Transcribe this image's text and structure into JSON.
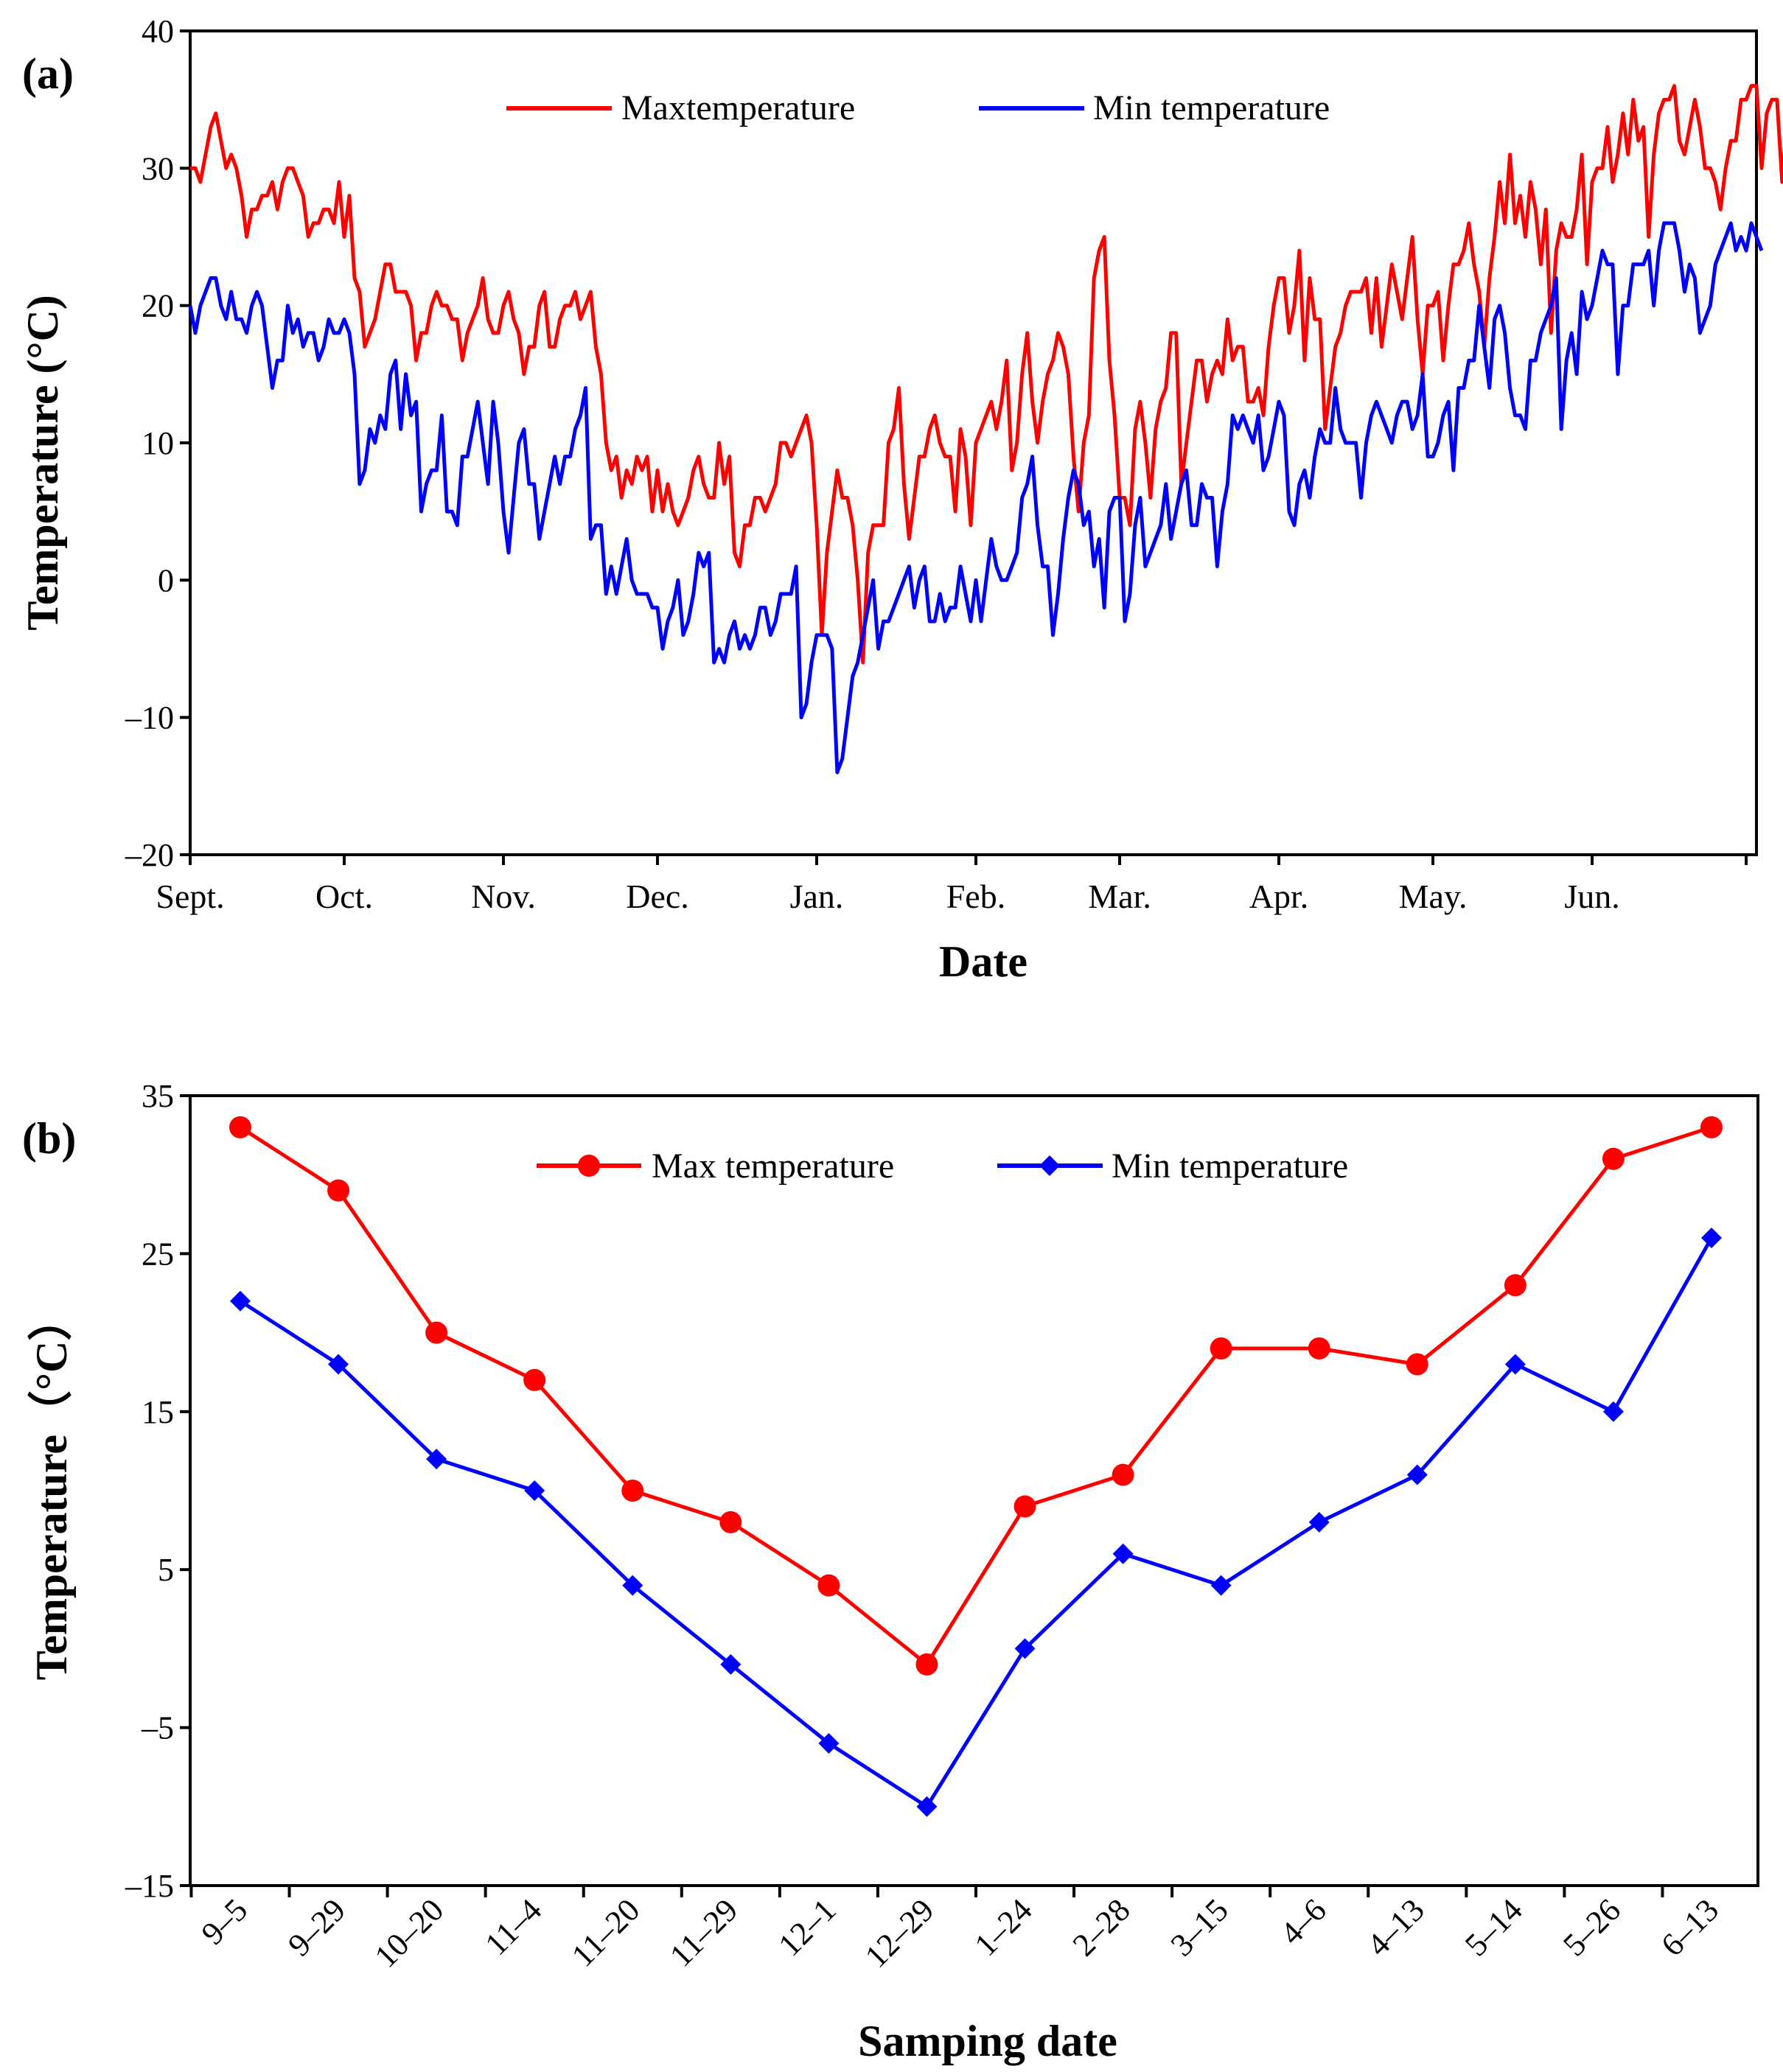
{
  "chart_data": [
    {
      "type": "line",
      "panel_label": "(a)",
      "xlabel": "Date",
      "ylabel": "Temperature (°C)",
      "ylim": [
        -20,
        40
      ],
      "yticks": [
        -20,
        -10,
        0,
        10,
        20,
        30,
        40
      ],
      "ytick_labels": [
        "–20",
        "–10",
        "0",
        "10",
        "20",
        "30",
        "40"
      ],
      "xlim": [
        0,
        305
      ],
      "month_ticks": [
        0,
        30,
        61,
        91,
        122,
        153,
        181,
        212,
        242,
        273,
        303
      ],
      "month_labels": [
        "Sept.",
        "Oct.",
        "Nov.",
        "Dec.",
        "Jan.",
        "Feb.",
        "Mar.",
        "Apr.",
        "May.",
        "Jun."
      ],
      "legend_placement": "top-center",
      "series": [
        {
          "name": "Maxtemperature",
          "color": "#ff0000",
          "values": [
            30,
            30,
            29,
            31,
            33,
            34,
            32,
            30,
            31,
            30,
            28,
            25,
            27,
            27,
            28,
            28,
            29,
            27,
            29,
            30,
            30,
            29,
            28,
            25,
            26,
            26,
            27,
            27,
            26,
            29,
            25,
            28,
            22,
            21,
            17,
            18,
            19,
            21,
            23,
            23,
            21,
            21,
            21,
            20,
            16,
            18,
            18,
            20,
            21,
            20,
            20,
            19,
            19,
            16,
            18,
            19,
            20,
            22,
            19,
            18,
            18,
            20,
            21,
            19,
            18,
            15,
            17,
            17,
            20,
            21,
            17,
            17,
            19,
            20,
            20,
            21,
            19,
            20,
            21,
            17,
            15,
            10,
            8,
            9,
            6,
            8,
            7,
            9,
            8,
            9,
            5,
            8,
            5,
            7,
            5,
            4,
            5,
            6,
            8,
            9,
            7,
            6,
            6,
            10,
            7,
            9,
            2,
            1,
            4,
            4,
            6,
            6,
            5,
            6,
            7,
            10,
            10,
            9,
            10,
            11,
            12,
            10,
            4,
            -4,
            2,
            5,
            8,
            6,
            6,
            4,
            0,
            -6,
            2,
            4,
            4,
            4,
            10,
            11,
            14,
            7,
            3,
            6,
            9,
            9,
            11,
            12,
            10,
            9,
            9,
            5,
            11,
            9,
            4,
            10,
            11,
            12,
            13,
            11,
            13,
            16,
            8,
            10,
            15,
            18,
            13,
            10,
            13,
            15,
            16,
            18,
            17,
            15,
            9,
            5,
            10,
            12,
            22,
            24,
            25,
            16,
            12,
            6,
            6,
            4,
            11,
            13,
            10,
            6,
            11,
            13,
            14,
            18,
            18,
            7,
            10,
            13,
            16,
            16,
            13,
            15,
            16,
            15,
            19,
            16,
            17,
            17,
            13,
            13,
            14,
            12,
            17,
            20,
            22,
            22,
            18,
            20,
            24,
            16,
            22,
            19,
            19,
            11,
            14,
            17,
            18,
            20,
            21,
            21,
            21,
            22,
            18,
            22,
            17,
            20,
            23,
            21,
            19,
            22,
            25,
            19,
            15,
            20,
            20,
            21,
            16,
            20,
            23,
            23,
            24,
            26,
            23,
            21,
            17,
            22,
            25,
            29,
            26,
            31,
            26,
            28,
            25,
            29,
            27,
            23,
            27,
            18,
            24,
            26,
            25,
            25,
            27,
            31,
            23,
            29,
            30,
            30,
            33,
            29,
            31,
            34,
            31,
            35,
            32,
            33,
            25,
            31,
            34,
            35,
            35,
            36,
            32,
            31,
            33,
            35,
            33,
            30,
            30,
            29,
            27,
            30,
            32,
            32,
            35,
            35,
            36,
            36,
            30,
            34,
            35,
            35,
            29,
            34
          ]
        },
        {
          "name": "Min temperature",
          "color": "#0000ff",
          "values": [
            20,
            18,
            20,
            21,
            22,
            22,
            20,
            19,
            21,
            19,
            19,
            18,
            20,
            21,
            20,
            17,
            14,
            16,
            16,
            20,
            18,
            19,
            17,
            18,
            18,
            16,
            17,
            19,
            18,
            18,
            19,
            18,
            15,
            7,
            8,
            11,
            10,
            12,
            11,
            15,
            16,
            11,
            15,
            12,
            13,
            5,
            7,
            8,
            8,
            12,
            5,
            5,
            4,
            9,
            9,
            11,
            13,
            10,
            7,
            13,
            10,
            5,
            2,
            6,
            10,
            11,
            7,
            7,
            3,
            5,
            7,
            9,
            7,
            9,
            9,
            11,
            12,
            14,
            3,
            4,
            4,
            -1,
            1,
            -1,
            1,
            3,
            0,
            -1,
            -1,
            -1,
            -2,
            -2,
            -5,
            -3,
            -2,
            0,
            -4,
            -3,
            -1,
            2,
            1,
            2,
            -6,
            -5,
            -6,
            -4,
            -3,
            -5,
            -4,
            -5,
            -4,
            -2,
            -2,
            -4,
            -3,
            -1,
            -1,
            -1,
            1,
            -10,
            -9,
            -6,
            -4,
            -4,
            -4,
            -5,
            -14,
            -13,
            -10,
            -7,
            -6,
            -4,
            -2,
            0,
            -5,
            -3,
            -3,
            -2,
            -1,
            0,
            1,
            -2,
            0,
            1,
            -3,
            -3,
            -1,
            -3,
            -2,
            -2,
            1,
            -1,
            -3,
            0,
            -3,
            0,
            3,
            1,
            0,
            0,
            1,
            2,
            6,
            7,
            9,
            4,
            1,
            1,
            -4,
            -1,
            3,
            6,
            8,
            7,
            4,
            5,
            1,
            3,
            -2,
            5,
            6,
            6,
            -3,
            -1,
            4,
            6,
            1,
            2,
            3,
            4,
            7,
            3,
            5,
            7,
            8,
            4,
            4,
            7,
            6,
            6,
            1,
            5,
            7,
            12,
            11,
            12,
            11,
            10,
            12,
            8,
            9,
            11,
            13,
            12,
            5,
            4,
            7,
            8,
            6,
            9,
            11,
            10,
            10,
            14,
            11,
            10,
            10,
            10,
            6,
            10,
            12,
            13,
            12,
            11,
            10,
            12,
            13,
            13,
            11,
            12,
            15,
            9,
            9,
            10,
            12,
            13,
            8,
            14,
            14,
            16,
            16,
            20,
            17,
            14,
            19,
            20,
            18,
            14,
            12,
            12,
            11,
            16,
            16,
            18,
            19,
            20,
            22,
            11,
            16,
            18,
            15,
            21,
            19,
            20,
            22,
            24,
            23,
            23,
            15,
            20,
            20,
            23,
            23,
            23,
            24,
            20,
            24,
            26,
            26,
            26,
            24,
            21,
            23,
            22,
            18,
            19,
            20,
            23,
            24,
            25,
            26,
            24,
            25,
            24,
            26,
            25,
            24
          ]
        }
      ]
    },
    {
      "type": "line",
      "panel_label": "(b)",
      "xlabel": "Samping date",
      "ylabel": "Temperature（°C）",
      "ylim": [
        -15,
        35
      ],
      "yticks": [
        -15,
        -5,
        5,
        15,
        25,
        35
      ],
      "ytick_labels": [
        "–15",
        "–5",
        "5",
        "15",
        "25",
        "35"
      ],
      "categories": [
        "9–5",
        "9–29",
        "10–20",
        "11–4",
        "11–20",
        "11–29",
        "12–1",
        "12–29",
        "1–24",
        "2–28",
        "3–15",
        "4–6",
        "4–13",
        "5–14",
        "5–26",
        "6–13"
      ],
      "legend_placement": "top-center",
      "series": [
        {
          "name": "Max temperature",
          "color": "#ff0000",
          "marker": "circle",
          "values": [
            33,
            29,
            20,
            17,
            10,
            8,
            4,
            -1,
            9,
            11,
            19,
            19,
            18,
            23,
            31,
            33
          ]
        },
        {
          "name": "Min temperature",
          "color": "#0000ff",
          "marker": "diamond",
          "values": [
            22,
            18,
            12,
            10,
            4,
            -1,
            -6,
            -10,
            0,
            6,
            4,
            8,
            11,
            18,
            15,
            26
          ]
        }
      ]
    }
  ]
}
